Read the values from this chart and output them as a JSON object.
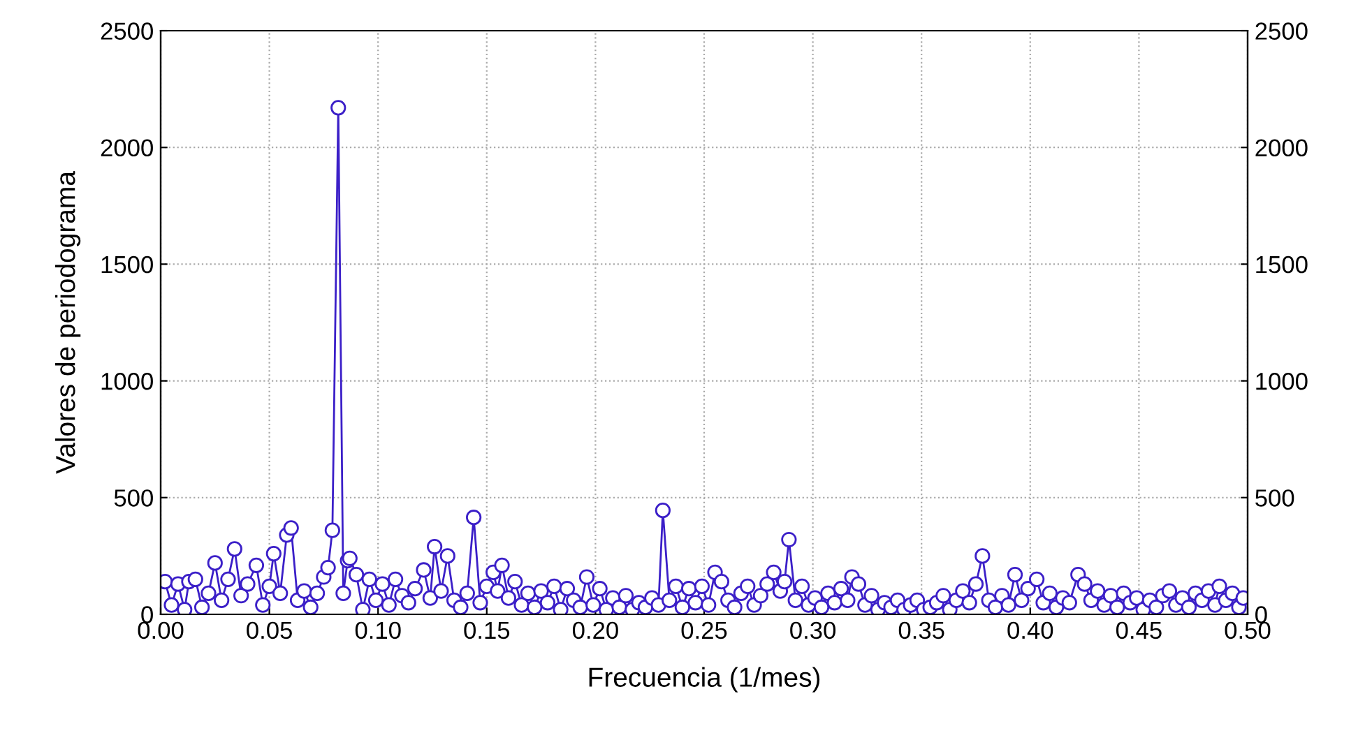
{
  "chart_data": {
    "type": "line",
    "xlabel": "Frecuencia (1/mes)",
    "ylabel": "Valores de periodograma",
    "xlim": [
      0,
      0.5
    ],
    "xticks": [
      {
        "value": 0,
        "label": "0.00"
      },
      {
        "value": 0.05,
        "label": "0.05"
      },
      {
        "value": 0.1,
        "label": "0.10"
      },
      {
        "value": 0.15,
        "label": "0.15"
      },
      {
        "value": 0.2,
        "label": "0.20"
      },
      {
        "value": 0.25,
        "label": "0.25"
      },
      {
        "value": 0.3,
        "label": "0.30"
      },
      {
        "value": 0.35,
        "label": "0.35"
      },
      {
        "value": 0.4,
        "label": "0.40"
      },
      {
        "value": 0.45,
        "label": "0.45"
      },
      {
        "value": 0.5,
        "label": "0.50"
      }
    ],
    "ylim": [
      0,
      2500
    ],
    "yticks": [
      0,
      500,
      1000,
      1500,
      2000,
      2500
    ],
    "y2lim": [
      0,
      2500
    ],
    "y2ticks": [
      0,
      500,
      1000,
      1500,
      2000,
      2500
    ],
    "grid": true,
    "marker": "circle",
    "line_style": "solid",
    "series": [
      {
        "color": "#3b1fc8",
        "x": [
          0.002,
          0.005,
          0.008,
          0.011,
          0.013,
          0.016,
          0.019,
          0.022,
          0.025,
          0.028,
          0.031,
          0.034,
          0.037,
          0.04,
          0.044,
          0.047,
          0.05,
          0.052,
          0.055,
          0.058,
          0.06,
          0.063,
          0.066,
          0.069,
          0.072,
          0.075,
          0.077,
          0.079,
          0.0817,
          0.084,
          0.086,
          0.087,
          0.09,
          0.093,
          0.096,
          0.099,
          0.102,
          0.105,
          0.108,
          0.111,
          0.114,
          0.117,
          0.121,
          0.124,
          0.126,
          0.129,
          0.132,
          0.135,
          0.138,
          0.141,
          0.144,
          0.147,
          0.15,
          0.153,
          0.155,
          0.157,
          0.16,
          0.163,
          0.166,
          0.169,
          0.172,
          0.175,
          0.178,
          0.181,
          0.184,
          0.187,
          0.19,
          0.193,
          0.196,
          0.199,
          0.202,
          0.205,
          0.208,
          0.211,
          0.214,
          0.217,
          0.22,
          0.223,
          0.226,
          0.229,
          0.231,
          0.234,
          0.237,
          0.24,
          0.243,
          0.246,
          0.249,
          0.252,
          0.255,
          0.258,
          0.261,
          0.264,
          0.267,
          0.27,
          0.273,
          0.276,
          0.279,
          0.282,
          0.285,
          0.287,
          0.289,
          0.292,
          0.295,
          0.298,
          0.301,
          0.304,
          0.307,
          0.31,
          0.313,
          0.316,
          0.318,
          0.321,
          0.324,
          0.327,
          0.33,
          0.333,
          0.336,
          0.339,
          0.342,
          0.345,
          0.348,
          0.351,
          0.354,
          0.357,
          0.36,
          0.363,
          0.366,
          0.369,
          0.372,
          0.375,
          0.378,
          0.381,
          0.384,
          0.387,
          0.39,
          0.393,
          0.396,
          0.399,
          0.403,
          0.406,
          0.409,
          0.412,
          0.415,
          0.418,
          0.422,
          0.425,
          0.428,
          0.431,
          0.434,
          0.437,
          0.44,
          0.443,
          0.446,
          0.449,
          0.452,
          0.455,
          0.458,
          0.461,
          0.464,
          0.467,
          0.47,
          0.473,
          0.476,
          0.479,
          0.482,
          0.485,
          0.487,
          0.49,
          0.493,
          0.496,
          0.498
        ],
        "values": [
          140,
          40,
          130,
          20,
          140,
          150,
          30,
          90,
          220,
          60,
          150,
          280,
          80,
          130,
          210,
          40,
          120,
          260,
          90,
          340,
          370,
          60,
          100,
          30,
          90,
          160,
          200,
          360,
          2170,
          90,
          230,
          240,
          170,
          20,
          150,
          60,
          130,
          40,
          150,
          80,
          50,
          110,
          190,
          70,
          290,
          100,
          250,
          60,
          30,
          90,
          415,
          50,
          120,
          180,
          100,
          210,
          70,
          140,
          40,
          90,
          30,
          100,
          50,
          120,
          20,
          110,
          60,
          30,
          160,
          40,
          110,
          20,
          70,
          30,
          80,
          20,
          50,
          30,
          70,
          40,
          445,
          60,
          120,
          30,
          110,
          50,
          120,
          40,
          180,
          140,
          60,
          30,
          90,
          120,
          40,
          80,
          130,
          180,
          100,
          140,
          320,
          60,
          120,
          40,
          70,
          30,
          90,
          50,
          110,
          60,
          160,
          130,
          40,
          80,
          20,
          50,
          30,
          60,
          20,
          40,
          60,
          20,
          30,
          50,
          80,
          20,
          60,
          100,
          50,
          130,
          250,
          60,
          30,
          80,
          40,
          170,
          60,
          110,
          150,
          50,
          90,
          30,
          70,
          50,
          170,
          130,
          60,
          100,
          40,
          80,
          30,
          90,
          50,
          70,
          20,
          60,
          30,
          80,
          100,
          40,
          70,
          30,
          90,
          60,
          100,
          40,
          120,
          60,
          90,
          30,
          70
        ]
      }
    ]
  }
}
